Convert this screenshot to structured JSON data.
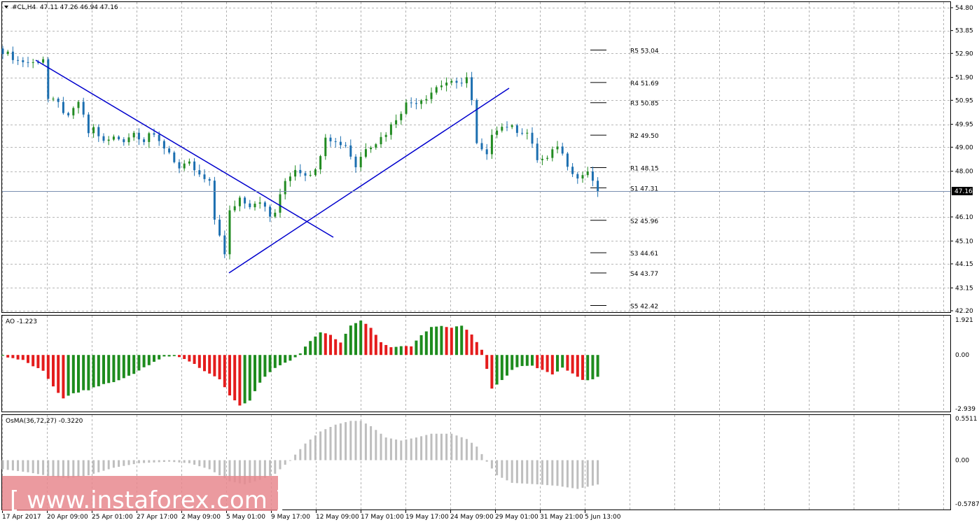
{
  "header": {
    "title": "#CL,H4",
    "ohlc": "47.11 47.26 46.94 47.16"
  },
  "price_axis": {
    "labels": [
      "54.80",
      "53.85",
      "52.90",
      "51.90",
      "50.95",
      "49.95",
      "49.00",
      "48.00",
      "47.16",
      "46.10",
      "45.10",
      "44.15",
      "43.15",
      "42.20"
    ],
    "current": "47.16",
    "range": [
      42.2,
      54.8
    ]
  },
  "time_axis": {
    "labels": [
      "17 Apr 2017",
      "20 Apr 09:00",
      "25 Apr 01:00",
      "27 Apr 17:00",
      "2 May 09:00",
      "5 May 01:00",
      "9 May 17:00",
      "12 May 09:00",
      "17 May 01:00",
      "19 May 17:00",
      "24 May 09:00",
      "29 May 01:00",
      "31 May 21:00",
      "5 Jun 13:00"
    ]
  },
  "pivots": [
    {
      "label": "R5",
      "value": "53.04"
    },
    {
      "label": "R4",
      "value": "51.69"
    },
    {
      "label": "R3",
      "value": "50.85"
    },
    {
      "label": "R2",
      "value": "49.50"
    },
    {
      "label": "R1",
      "value": "48.15"
    },
    {
      "label": "S1",
      "value": "47.31"
    },
    {
      "label": "S2",
      "value": "45.96"
    },
    {
      "label": "S3",
      "value": "44.61"
    },
    {
      "label": "S4",
      "value": "43.77"
    },
    {
      "label": "S5",
      "value": "42.42"
    }
  ],
  "ao_panel": {
    "title": "AO -1.223",
    "axis_labels": [
      "1.921",
      "0.00",
      "-2.939"
    ],
    "range": [
      -2.939,
      1.921
    ]
  },
  "osma_panel": {
    "title": "OsMA(36,72,27) -0.3220",
    "axis_labels": [
      "0.5511",
      "0.00",
      "-0.5787"
    ],
    "range": [
      -0.5787,
      0.5511
    ]
  },
  "watermark": {
    "text": "[ www.instaforex.com ]"
  },
  "colors": {
    "bull": "#228B22",
    "bear": "#1C6FB0",
    "trendline": "#0000CD",
    "ao_up": "#1E8C1E",
    "ao_down": "#E41C1C",
    "osma": "#BEBEBE",
    "grid": "#A0A0A0",
    "watermark_bg": "#E8888E"
  },
  "chart_data": [
    {
      "type": "candlestick",
      "title": "#CL,H4",
      "ylim": [
        42.2,
        54.8
      ],
      "x": [
        "17 Apr 2017",
        "20 Apr 09:00",
        "25 Apr 01:00",
        "27 Apr 17:00",
        "2 May 09:00",
        "5 May 01:00",
        "9 May 17:00",
        "12 May 09:00",
        "17 May 01:00",
        "19 May 17:00",
        "24 May 09:00",
        "29 May 01:00",
        "31 May 21:00",
        "5 Jun 13:00"
      ],
      "close_path": [
        [
          0,
          53.0
        ],
        [
          3,
          52.6
        ],
        [
          6,
          52.5
        ],
        [
          8,
          52.7
        ],
        [
          9,
          51.0
        ],
        [
          11,
          50.8
        ],
        [
          13,
          50.2
        ],
        [
          15,
          50.9
        ],
        [
          17,
          49.6
        ],
        [
          18,
          49.8
        ],
        [
          20,
          49.2
        ],
        [
          22,
          49.4
        ],
        [
          24,
          49.3
        ],
        [
          26,
          49.6
        ],
        [
          28,
          49.3
        ],
        [
          29,
          49.6
        ],
        [
          31,
          49.2
        ],
        [
          33,
          48.8
        ],
        [
          35,
          48.1
        ],
        [
          37,
          48.3
        ],
        [
          39,
          47.8
        ],
        [
          41,
          47.5
        ],
        [
          42,
          46.0
        ],
        [
          43,
          45.4
        ],
        [
          44,
          44.5
        ],
        [
          45,
          46.3
        ],
        [
          47,
          46.9
        ],
        [
          49,
          46.6
        ],
        [
          51,
          46.8
        ],
        [
          53,
          46.1
        ],
        [
          54,
          46.3
        ],
        [
          56,
          47.6
        ],
        [
          58,
          48.1
        ],
        [
          60,
          47.9
        ],
        [
          62,
          48.0
        ],
        [
          64,
          49.5
        ],
        [
          66,
          49.2
        ],
        [
          68,
          49.1
        ],
        [
          70,
          48.2
        ],
        [
          72,
          49.0
        ],
        [
          74,
          49.2
        ],
        [
          76,
          49.6
        ],
        [
          78,
          50.2
        ],
        [
          80,
          50.8
        ],
        [
          82,
          50.9
        ],
        [
          84,
          51.1
        ],
        [
          86,
          51.5
        ],
        [
          88,
          51.7
        ],
        [
          90,
          51.6
        ],
        [
          92,
          51.9
        ],
        [
          93,
          50.9
        ],
        [
          94,
          49.1
        ],
        [
          96,
          48.6
        ],
        [
          97,
          49.6
        ],
        [
          98,
          49.8
        ],
        [
          100,
          49.9
        ],
        [
          102,
          49.7
        ],
        [
          104,
          49.6
        ],
        [
          106,
          48.5
        ],
        [
          108,
          48.5
        ],
        [
          110,
          49.1
        ],
        [
          112,
          48.3
        ],
        [
          114,
          47.7
        ],
        [
          116,
          48.0
        ],
        [
          117,
          47.5
        ],
        [
          118,
          47.2
        ]
      ]
    },
    {
      "type": "bar",
      "title": "AO -1.223",
      "ylim": [
        -2.939,
        1.921
      ]
    },
    {
      "type": "bar",
      "title": "OsMA(36,72,27) -0.3220",
      "ylim": [
        -0.5787,
        0.5511
      ]
    }
  ]
}
